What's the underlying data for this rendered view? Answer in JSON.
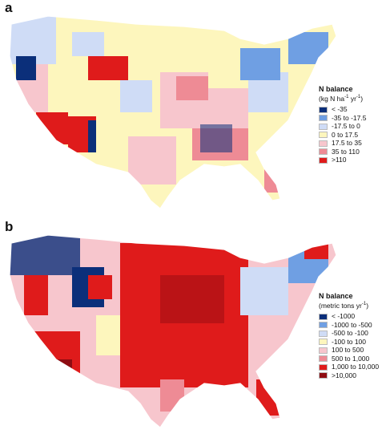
{
  "panels": [
    {
      "letter": "a",
      "legend": {
        "title": "N balance",
        "unit_prefix": "(kg N ha",
        "unit_sup1": "-1",
        "unit_mid": " yr",
        "unit_sup2": "-1",
        "unit_suffix": ")",
        "items": [
          {
            "label": "< -35",
            "color": "#0b2f7a"
          },
          {
            "label": "-35 to -17.5",
            "color": "#6f9fe3"
          },
          {
            "label": "-17.5 to 0",
            "color": "#cfdcf6"
          },
          {
            "label": "0 to 17.5",
            "color": "#fdf6bd"
          },
          {
            "label": "17.5 to 35",
            "color": "#f7c6cd"
          },
          {
            "label": "35 to 110",
            "color": "#ee8b95"
          },
          {
            "label": ">110",
            "color": "#df1b1b"
          }
        ]
      }
    },
    {
      "letter": "b",
      "legend": {
        "title": "N balance",
        "unit_prefix": "(metric tons yr",
        "unit_sup1": "-1",
        "unit_mid": "",
        "unit_sup2": "",
        "unit_suffix": ")",
        "items": [
          {
            "label": "< -1000",
            "color": "#0b2f7a"
          },
          {
            "label": "-1000 to -500",
            "color": "#6f9fe3"
          },
          {
            "label": "-500 to -100",
            "color": "#cfdcf6"
          },
          {
            "label": "-100 to 100",
            "color": "#fdf6bd"
          },
          {
            "label": "100 to 500",
            "color": "#f7c6cd"
          },
          {
            "label": "500 to 1,000",
            "color": "#ee8b95"
          },
          {
            "label": "1,000 to 10,000",
            "color": "#df1b1b"
          },
          {
            "label": ">10,000",
            "color": "#8e0c12"
          }
        ]
      }
    }
  ]
}
